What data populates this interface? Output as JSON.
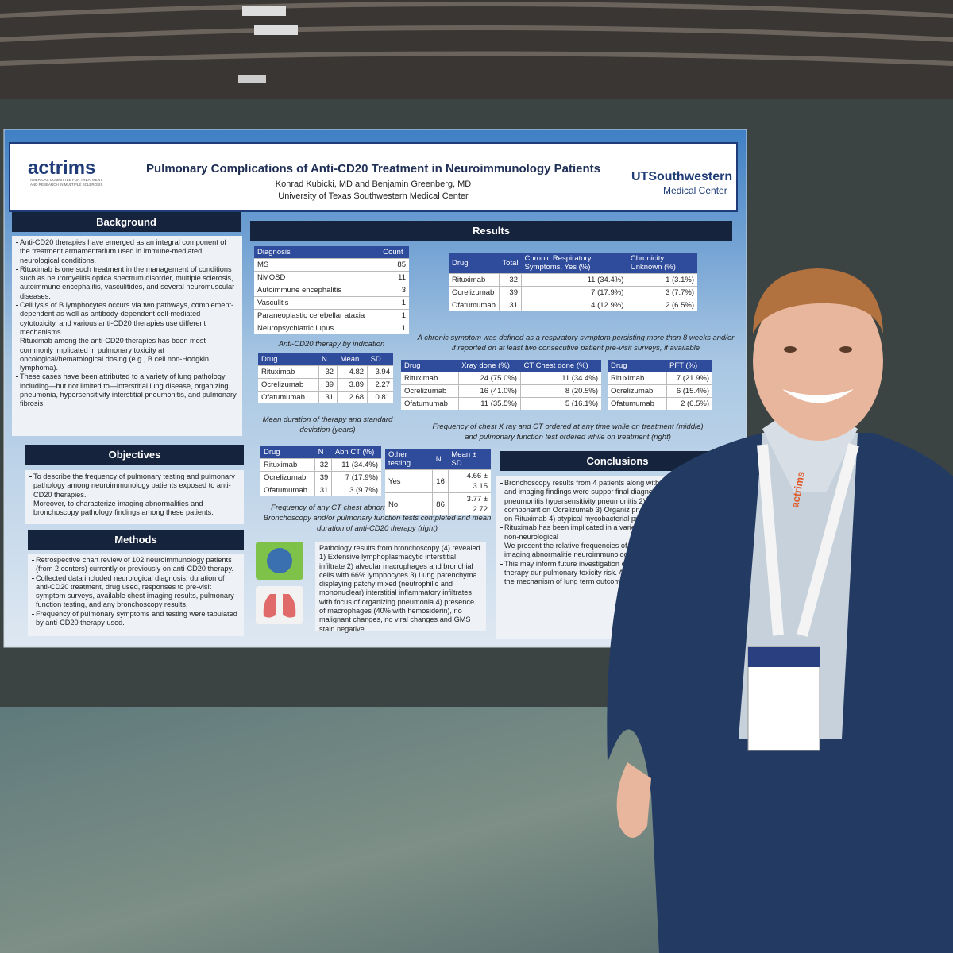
{
  "poster": {
    "logo_left": "actrims",
    "logo_left_sub": "AMERICAS COMMITTEE FOR TREATMENT AND RESEARCH IN MULTIPLE SCLEROSIS",
    "title": "Pulmonary Complications of Anti-CD20 Treatment in Neuroimmunology Patients",
    "authors": "Konrad Kubicki, MD and Benjamin Greenberg, MD",
    "institution": "University of Texas Southwestern Medical Center",
    "logo_right": "UTSouthwestern",
    "logo_right_sub": "Medical Center",
    "background": {
      "heading": "Background",
      "items": [
        "Anti-CD20 therapies have emerged as an integral component of the treatment armamentarium used in immune-mediated neurological conditions.",
        "Rituximab is one such treatment in the management of conditions such as neuromyelitis optica spectrum disorder, multiple sclerosis, autoimmune encephalitis, vasculitides, and several neuromuscular diseases.",
        "Cell lysis of B lymphocytes occurs via two pathways, complement-dependent as well as antibody-dependent cell-mediated cytotoxicity, and various anti-CD20 therapies use different mechanisms.",
        "Rituximab among the anti-CD20 therapies has been most commonly implicated in pulmonary toxicity at oncological/hematological dosing (e.g., B cell non-Hodgkin lymphoma).",
        "These cases have been attributed to a variety of lung pathology including—but not limited to—interstitial lung disease, organizing pneumonia, hypersensitivity interstitial pneumonitis, and pulmonary fibrosis."
      ]
    },
    "objectives": {
      "heading": "Objectives",
      "items": [
        "To describe the frequency of pulmonary testing and pulmonary pathology among neuroimmunology patients exposed to anti-CD20 therapies.",
        "Moreover, to characterize imaging abnormalities and bronchoscopy pathology findings among these patients."
      ]
    },
    "methods": {
      "heading": "Methods",
      "items": [
        "Retrospective chart review of 102 neuroimmunology patients (from 2 centers) currently or previously on anti-CD20 therapy.",
        "Collected data included neurological diagnosis, duration of anti-CD20 treatment, drug used, responses to pre-visit symptom surveys, available chest imaging results, pulmonary function testing, and any bronchoscopy results.",
        "Frequency of pulmonary symptoms and testing were tabulated by anti-CD20 therapy used."
      ]
    },
    "results": {
      "heading": "Results",
      "tables": {
        "diagnosis": {
          "header": [
            "Diagnosis",
            "Count"
          ],
          "rows": [
            [
              "MS",
              85
            ],
            [
              "NMOSD",
              11
            ],
            [
              "Autoimmune encephalitis",
              3
            ],
            [
              "Vasculitis",
              1
            ],
            [
              "Paraneoplastic cerebellar ataxia",
              1
            ],
            [
              "Neuropsychiatric lupus",
              1
            ]
          ]
        },
        "chronic": {
          "header": [
            "Drug",
            "Total",
            "Chronic Respiratory Symptoms, Yes (%)",
            "Chronicity Unknown (%)"
          ],
          "rows": [
            [
              "Rituximab",
              32,
              "11 (34.4%)",
              "1 (3.1%)"
            ],
            [
              "Ocrelizumab",
              39,
              "7 (17.9%)",
              "3 (7.7%)"
            ],
            [
              "Ofatumumab",
              31,
              "4 (12.9%)",
              "2 (6.5%)"
            ]
          ]
        },
        "duration": {
          "header": [
            "Drug",
            "N",
            "Mean",
            "SD"
          ],
          "rows": [
            [
              "Rituximab",
              32,
              4.82,
              3.94
            ],
            [
              "Ocrelizumab",
              39,
              3.89,
              2.27
            ],
            [
              "Ofatumumab",
              31,
              2.68,
              0.81
            ]
          ]
        },
        "imaging": {
          "header": [
            "Drug",
            "Xray done (%)",
            "CT Chest done (%)"
          ],
          "rows": [
            [
              "Rituximab",
              "24 (75.0%)",
              "11 (34.4%)"
            ],
            [
              "Ocrelizumab",
              "16 (41.0%)",
              "8 (20.5%)"
            ],
            [
              "Ofatumumab",
              "11 (35.5%)",
              "5 (16.1%)"
            ]
          ]
        },
        "pft": {
          "header": [
            "Drug",
            "PFT (%)"
          ],
          "rows": [
            [
              "Rituximab",
              "7 (21.9%)"
            ],
            [
              "Ocrelizumab",
              "6 (15.4%)"
            ],
            [
              "Ofatumumab",
              "2 (6.5%)"
            ]
          ]
        },
        "abnct": {
          "header": [
            "Drug",
            "N",
            "Abn CT (%)"
          ],
          "rows": [
            [
              "Rituximab",
              32,
              "11 (34.4%)"
            ],
            [
              "Ocrelizumab",
              39,
              "7 (17.9%)"
            ],
            [
              "Ofatumumab",
              31,
              "3 (9.7%)"
            ]
          ]
        },
        "other": {
          "header": [
            "Other testing",
            "N",
            "Mean ± SD"
          ],
          "rows": [
            [
              "Yes",
              16,
              "4.66 ± 3.15"
            ],
            [
              "No",
              86,
              "3.77 ± 2.72"
            ]
          ]
        }
      },
      "captions": {
        "diagnosis": "Anti-CD20 therapy by indication",
        "chronic": "A chronic symptom was defined as a respiratory symptom persisting more than 8 weeks and/or if reported on at least two consecutive patient pre-visit surveys, if available",
        "duration": "Mean duration of therapy and standard deviation (years)",
        "imaging": "Frequency of chest X ray and CT ordered at any time while on treatment (middle) and pulmonary function test ordered while on treatment (right)",
        "testing": "Frequency of any CT chest abnormality while on treatment (left) Bronchoscopy and/or pulmonary function tests completed and mean duration of anti-CD20 therapy (right)"
      },
      "pathology": "Pathology results from bronchoscopy (4) revealed 1) Extensive lymphoplasmacytic interstitial infiltrate 2) alveolar macrophages and bronchial cells with 66% lymphocytes 3) Lung parenchyma displaying patchy mixed (neutrophilic and mononuclear) interstitial inflammatory infiltrates with focus of organizing pneumonia 4) presence of macrophages (40% with hemosiderin), no malignant changes, no viral changes and GMS stain negative"
    },
    "conclusions": {
      "heading": "Conclusions",
      "items": [
        "Bronchoscopy results from 4 patients along with the clinical course and imaging findings were suppor final diagnoses 1) Rituxan induced pneumonitis hypersensitivity pneumonitis 2) Organizing pne fibrotic component on Ocrelizumab 3) Organiz pneumonia or drug reaction on Rituximab 4) atypical mycobacterial pneumonia on Rituxi",
        "Rituximab has been implicated in a variety of patients treated for other non-neurological",
        "We present the relative frequencies of both symptoms and chest imaging abnormalitie neuroimmunology patients on anti-CD20 t",
        "This may inform future investigation of d (and of cumulative anti-CD20 therapy dur pulmonary toxicity risk. Additional invest needed to clarify the mechanism of lung term outcomes in affected patients."
      ]
    },
    "lanyard": "actrims"
  }
}
